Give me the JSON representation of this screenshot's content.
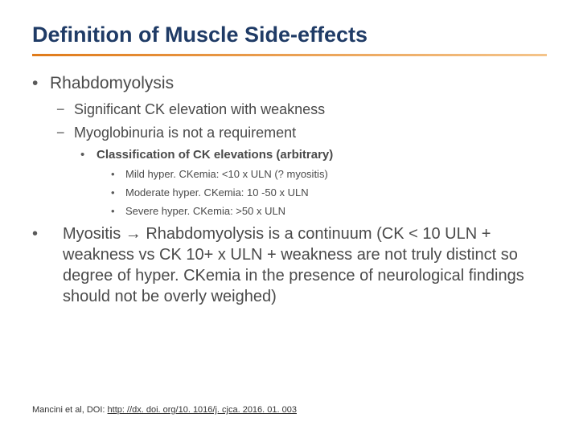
{
  "title": {
    "text": "Definition of Muscle Side-effects",
    "color": "#1f3b66",
    "fontsize": 27
  },
  "rule": {
    "color_from": "#e07b1a",
    "color_to": "#f4c48a"
  },
  "bullets": {
    "l1_1": "Rhabdomyolysis",
    "l2_1": "Significant CK elevation with weakness",
    "l2_2": "Myoglobinuria is not a requirement",
    "l3_1": "Classification of CK elevations (arbitrary)",
    "l4_1": "Mild hyper. CKemia: <10 x ULN (? myositis)",
    "l4_2": "Moderate hyper. CKemia: 10 -50 x ULN",
    "l4_3": "Severe hyper. CKemia: >50 x ULN",
    "l1_2": " Myositis → Rhabdomyolysis is a continuum (CK < 10 ULN + weakness vs CK 10+ x ULN + weakness are not truly distinct so degree of hyper. CKemia in the presence of neurological findings should not be overly weighed)"
  },
  "bullet_glyph": {
    "dot": "•",
    "dash": "−"
  },
  "citation": {
    "prefix": "Mancini et al, DOI: ",
    "link": "http: //dx. doi. org/10. 1016/j. cjca. 2016. 01. 003"
  },
  "colors": {
    "title": "#1f3b66",
    "body": "#4a4a4a",
    "bullet": "#5a5a5a",
    "citation": "#333333"
  }
}
